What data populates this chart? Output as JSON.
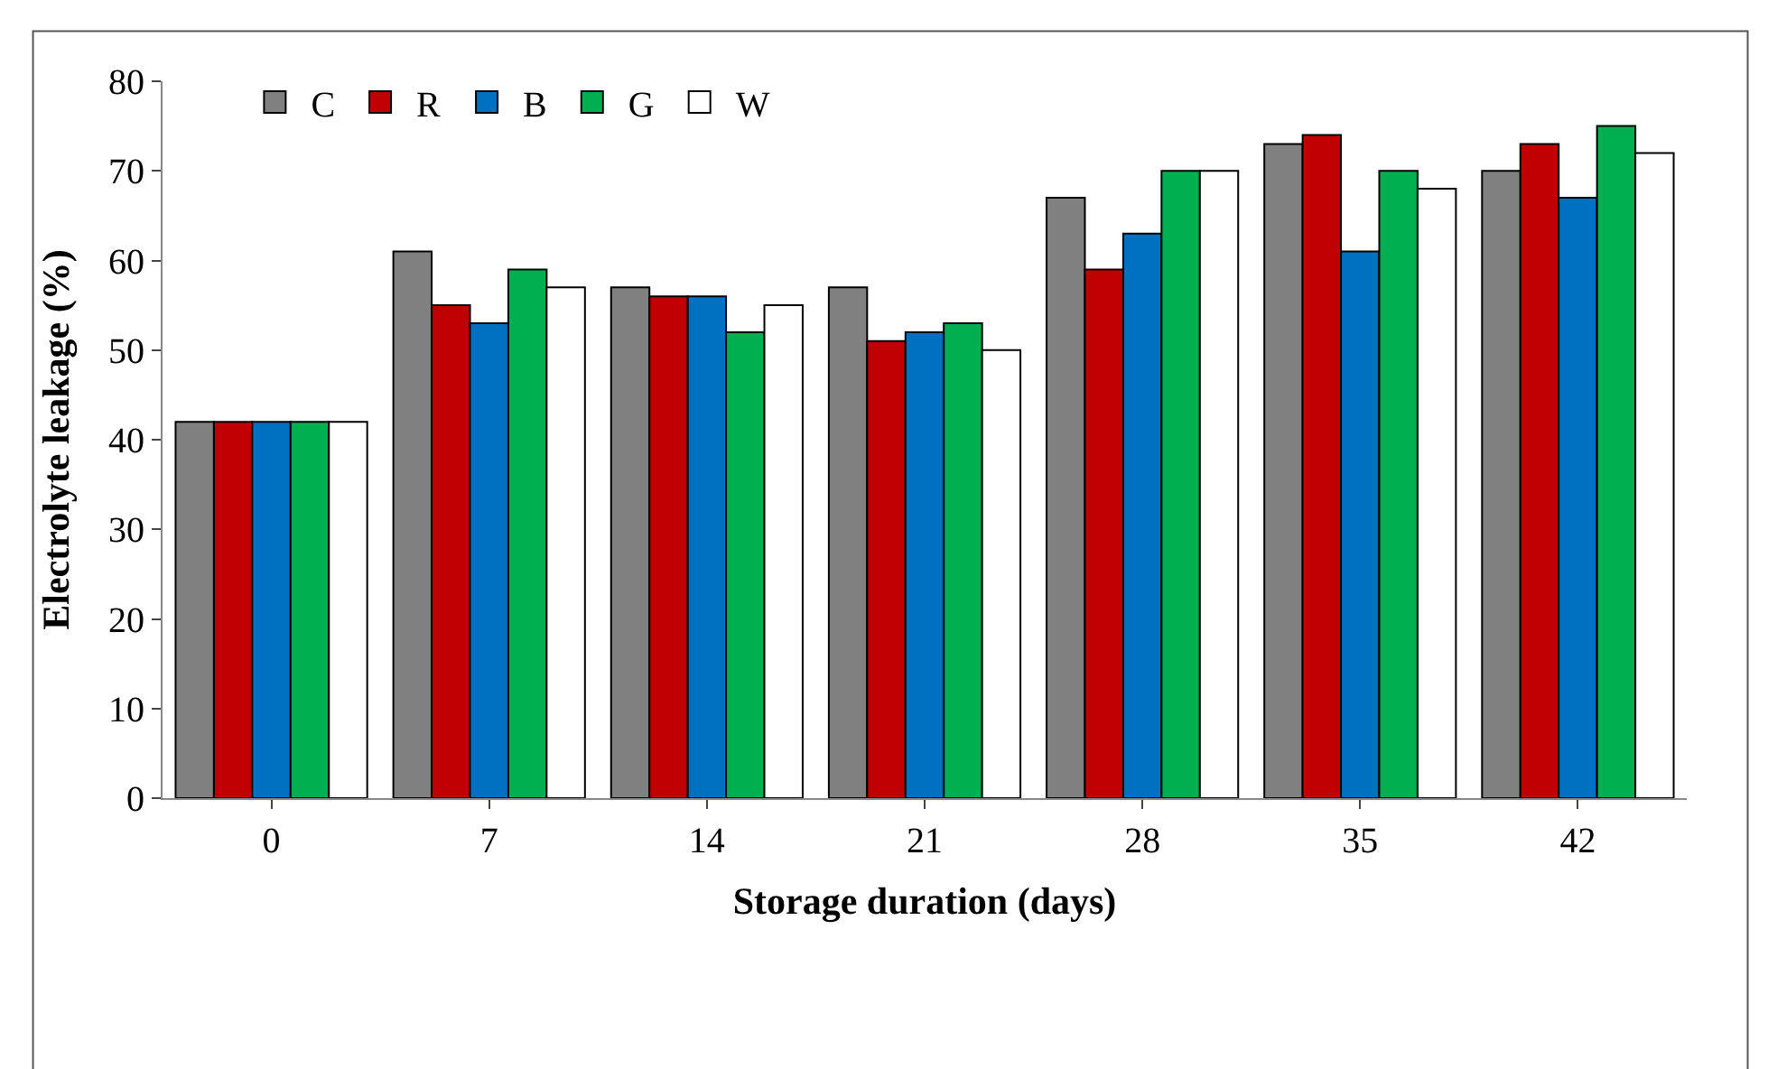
{
  "chart_data": {
    "type": "bar",
    "xlabel": "Storage duration (days)",
    "ylabel": "Electrolyte leakage (%)",
    "categories": [
      "0",
      "7",
      "14",
      "21",
      "28",
      "35",
      "42"
    ],
    "series": [
      {
        "name": "C",
        "color": "#808080",
        "values": [
          42,
          61,
          57,
          57,
          67,
          73,
          70
        ]
      },
      {
        "name": "R",
        "color": "#c00000",
        "values": [
          42,
          55,
          56,
          51,
          59,
          74,
          73
        ]
      },
      {
        "name": "B",
        "color": "#0070c0",
        "values": [
          42,
          53,
          56,
          52,
          63,
          61,
          67
        ]
      },
      {
        "name": "G",
        "color": "#00b050",
        "values": [
          42,
          59,
          52,
          53,
          70,
          70,
          75
        ]
      },
      {
        "name": "W",
        "color": "#ffffff",
        "values": [
          42,
          57,
          55,
          50,
          70,
          68,
          72
        ]
      }
    ],
    "ylim": [
      0,
      80
    ],
    "yticks": [
      0,
      10,
      20,
      30,
      40,
      50,
      60,
      70,
      80
    ],
    "legend": "top left"
  }
}
